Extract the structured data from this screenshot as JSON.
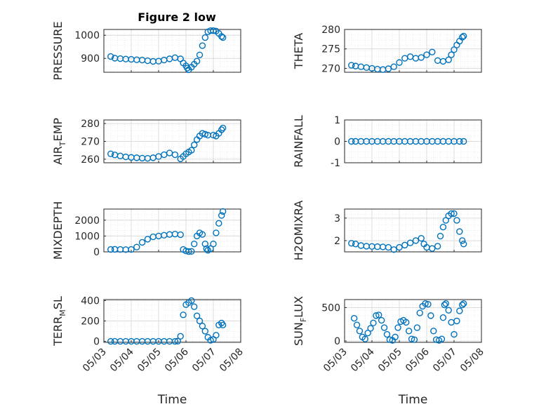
{
  "figure": {
    "title": "Figure 2 low"
  },
  "chart_data": [
    {
      "type": "scatter",
      "name": "p1",
      "title": "Figure 2 low",
      "ylabel": "PRESSURE",
      "ylim": [
        840,
        1025
      ],
      "yticks": [
        900,
        1000
      ],
      "ytick_labels": [
        "900",
        "1000"
      ],
      "xlim": [
        0,
        5
      ],
      "xtick_labels": [],
      "xlabel": "",
      "grid": true,
      "x": [
        0.25,
        0.4,
        0.6,
        0.8,
        1.0,
        1.2,
        1.4,
        1.6,
        1.8,
        2.0,
        2.2,
        2.4,
        2.6,
        2.8,
        2.9,
        3.0,
        3.05,
        3.1,
        3.2,
        3.3,
        3.4,
        3.5,
        3.6,
        3.7,
        3.8,
        3.9,
        4.0,
        4.1,
        4.2,
        4.3,
        4.35
      ],
      "y": [
        908,
        901,
        899,
        897,
        896,
        894,
        893,
        890,
        887,
        888,
        893,
        898,
        903,
        898,
        880,
        868,
        858,
        851,
        862,
        875,
        888,
        915,
        955,
        990,
        1015,
        1020,
        1020,
        1018,
        1008,
        995,
        990
      ]
    },
    {
      "type": "scatter",
      "name": "p2",
      "ylabel": "THETA",
      "ylim": [
        269,
        280
      ],
      "yticks": [
        270,
        275,
        280
      ],
      "ytick_labels": [
        "270",
        "275",
        "280"
      ],
      "xlim": [
        0,
        5
      ],
      "xtick_labels": [],
      "xlabel": "",
      "grid": true,
      "x": [
        0.25,
        0.4,
        0.6,
        0.8,
        1.0,
        1.2,
        1.4,
        1.6,
        1.8,
        2.0,
        2.2,
        2.4,
        2.6,
        2.8,
        3.0,
        3.2,
        3.4,
        3.6,
        3.8,
        3.9,
        4.0,
        4.1,
        4.2,
        4.3,
        4.35
      ],
      "y": [
        270.8,
        270.6,
        270.4,
        270.2,
        270.0,
        269.8,
        269.7,
        269.9,
        270.4,
        271.5,
        272.6,
        273.0,
        272.6,
        272.8,
        273.5,
        274.2,
        272.0,
        271.8,
        272.2,
        273.5,
        274.8,
        276.0,
        277.0,
        278.0,
        278.3
      ]
    },
    {
      "type": "scatter",
      "name": "p3",
      "ylabel": "AIR_TEMP",
      "ylim": [
        258,
        282
      ],
      "yticks": [
        260,
        270,
        280
      ],
      "ytick_labels": [
        "260",
        "270",
        "280"
      ],
      "xlim": [
        0,
        5
      ],
      "xtick_labels": [],
      "xlabel": "",
      "grid": true,
      "x": [
        0.25,
        0.4,
        0.6,
        0.8,
        1.0,
        1.2,
        1.4,
        1.6,
        1.8,
        2.0,
        2.2,
        2.4,
        2.6,
        2.8,
        2.9,
        3.0,
        3.1,
        3.2,
        3.3,
        3.4,
        3.5,
        3.6,
        3.7,
        3.8,
        4.0,
        4.1,
        4.2,
        4.3,
        4.35
      ],
      "y": [
        263,
        262.4,
        261.8,
        261.3,
        261.0,
        260.8,
        260.6,
        260.5,
        260.8,
        261.5,
        262.5,
        263.5,
        262.5,
        260.2,
        261.5,
        263,
        264,
        265,
        268,
        271,
        273,
        274.5,
        274,
        273.5,
        273.5,
        273.0,
        274.5,
        276.5,
        277.5
      ]
    },
    {
      "type": "scatter",
      "name": "p4",
      "ylabel": "RAINFALL",
      "ylim": [
        -1,
        1
      ],
      "yticks": [
        -1,
        0,
        1
      ],
      "ytick_labels": [
        "-1",
        "0",
        "1"
      ],
      "xlim": [
        0,
        5
      ],
      "xtick_labels": [],
      "xlabel": "",
      "grid": true,
      "x": [
        0.25,
        0.4,
        0.6,
        0.8,
        1.0,
        1.2,
        1.4,
        1.6,
        1.8,
        2.0,
        2.2,
        2.4,
        2.6,
        2.8,
        3.0,
        3.2,
        3.4,
        3.6,
        3.8,
        4.0,
        4.2,
        4.35
      ],
      "y": [
        0,
        0,
        0,
        0,
        0,
        0,
        0,
        0,
        0,
        0,
        0,
        0,
        0,
        0,
        0,
        0,
        0,
        0,
        0,
        0,
        0,
        0
      ]
    },
    {
      "type": "scatter",
      "name": "p5",
      "ylabel": "MIXDEPTH",
      "ylim": [
        0,
        2700
      ],
      "yticks": [
        0,
        1000,
        2000
      ],
      "ytick_labels": [
        "0",
        "1000",
        "2000"
      ],
      "xlim": [
        0,
        5
      ],
      "xtick_labels": [],
      "xlabel": "",
      "grid": true,
      "x": [
        0.25,
        0.4,
        0.6,
        0.8,
        1.0,
        1.2,
        1.4,
        1.6,
        1.8,
        2.0,
        2.2,
        2.4,
        2.6,
        2.8,
        2.9,
        3.0,
        3.1,
        3.2,
        3.3,
        3.4,
        3.5,
        3.6,
        3.7,
        3.75,
        3.8,
        3.9,
        4.0,
        4.1,
        4.2,
        4.3,
        4.35
      ],
      "y": [
        150,
        160,
        150,
        140,
        150,
        300,
        600,
        800,
        950,
        1000,
        1050,
        1100,
        1120,
        1080,
        150,
        60,
        20,
        30,
        500,
        1000,
        1200,
        1100,
        500,
        200,
        100,
        200,
        500,
        1200,
        1800,
        2300,
        2550
      ]
    },
    {
      "type": "scatter",
      "name": "p6",
      "ylabel": "H2OMIXRA",
      "ylim": [
        1.5,
        3.4
      ],
      "yticks": [
        2,
        3
      ],
      "ytick_labels": [
        "2",
        "3"
      ],
      "xlim": [
        0,
        5
      ],
      "xtick_labels": [],
      "xlabel": "",
      "grid": true,
      "x": [
        0.25,
        0.4,
        0.6,
        0.8,
        1.0,
        1.2,
        1.4,
        1.6,
        1.8,
        2.0,
        2.2,
        2.4,
        2.6,
        2.8,
        2.9,
        3.0,
        3.2,
        3.4,
        3.5,
        3.6,
        3.7,
        3.8,
        3.9,
        4.0,
        4.1,
        4.2,
        4.3,
        4.35
      ],
      "y": [
        1.88,
        1.85,
        1.78,
        1.75,
        1.74,
        1.73,
        1.72,
        1.7,
        1.6,
        1.7,
        1.8,
        1.9,
        2.0,
        2.1,
        1.85,
        1.7,
        1.65,
        1.75,
        2.2,
        2.6,
        2.9,
        3.1,
        3.2,
        3.2,
        2.9,
        2.4,
        2.0,
        1.85
      ]
    },
    {
      "type": "scatter",
      "name": "p7",
      "ylabel": "TERR_MSL",
      "ylim": [
        -10,
        410
      ],
      "yticks": [
        0,
        200,
        400
      ],
      "ytick_labels": [
        "0",
        "200",
        "400"
      ],
      "xlim": [
        0,
        5
      ],
      "xtick_labels": [
        "05/03",
        "05/04",
        "05/05",
        "05/06",
        "05/07",
        "05/08"
      ],
      "xlabel": "Time",
      "grid": true,
      "x": [
        0.25,
        0.4,
        0.6,
        0.8,
        1.0,
        1.2,
        1.4,
        1.6,
        1.8,
        2.0,
        2.2,
        2.4,
        2.6,
        2.7,
        2.8,
        2.9,
        3.0,
        3.1,
        3.2,
        3.3,
        3.4,
        3.5,
        3.6,
        3.7,
        3.8,
        3.9,
        4.0,
        4.1,
        4.2,
        4.3,
        4.35
      ],
      "y": [
        0,
        0,
        0,
        0,
        0,
        0,
        0,
        0,
        0,
        0,
        0,
        0,
        0,
        2,
        50,
        260,
        360,
        380,
        400,
        340,
        250,
        200,
        150,
        100,
        40,
        10,
        20,
        60,
        160,
        180,
        160
      ]
    },
    {
      "type": "scatter",
      "name": "p8",
      "ylabel": "SUN_FLUX",
      "ylim": [
        -20,
        620
      ],
      "yticks": [
        0,
        500
      ],
      "ytick_labels": [
        "0",
        "500"
      ],
      "xlim": [
        0,
        5
      ],
      "xtick_labels": [
        "05/03",
        "05/04",
        "05/05",
        "05/06",
        "05/07",
        "05/08"
      ],
      "xlabel": "Time",
      "grid": true,
      "x": [
        0.35,
        0.45,
        0.55,
        0.65,
        0.75,
        0.85,
        0.95,
        1.05,
        1.15,
        1.25,
        1.35,
        1.45,
        1.55,
        1.65,
        1.75,
        1.85,
        1.95,
        2.05,
        2.15,
        2.25,
        2.35,
        2.45,
        2.55,
        2.65,
        2.75,
        2.85,
        2.95,
        3.05,
        3.15,
        3.25,
        3.35,
        3.45,
        3.55,
        3.6,
        3.65,
        3.7,
        3.8,
        3.9,
        4.0,
        4.1,
        4.2,
        4.3,
        4.35
      ],
      "y": [
        340,
        240,
        150,
        60,
        30,
        120,
        190,
        270,
        380,
        390,
        310,
        200,
        100,
        20,
        10,
        60,
        200,
        290,
        310,
        280,
        150,
        30,
        20,
        200,
        420,
        520,
        560,
        550,
        380,
        150,
        20,
        10,
        30,
        350,
        540,
        560,
        460,
        280,
        100,
        300,
        450,
        540,
        560
      ]
    }
  ]
}
